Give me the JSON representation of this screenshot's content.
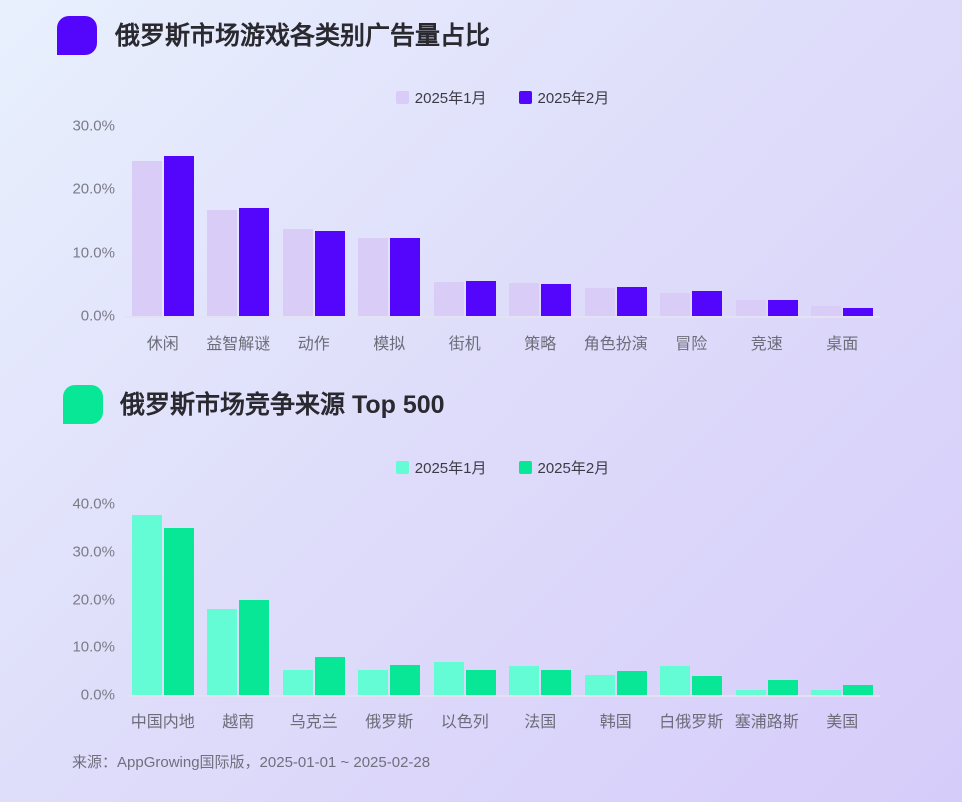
{
  "colors": {
    "background_start": "#e8f0fd",
    "background_mid": "#dedcfa",
    "background_end": "#d6ccfa"
  },
  "footer": {
    "text": "来源：AppGrowing国际版，2025-01-01 ~ 2025-02-28"
  },
  "chart_data": [
    {
      "type": "bar",
      "title": "俄罗斯市场游戏各类别广告量占比",
      "accent_color": "#5306fb",
      "legend_position": "top-center",
      "grid": false,
      "ylim": [
        0,
        30
      ],
      "yticks": [
        {
          "value": 0,
          "label": "0.0%"
        },
        {
          "value": 10,
          "label": "10.0%"
        },
        {
          "value": 20,
          "label": "20.0%"
        },
        {
          "value": 30,
          "label": "30.0%"
        }
      ],
      "categories": [
        "休闲",
        "益智解谜",
        "动作",
        "模拟",
        "街机",
        "策略",
        "角色扮演",
        "冒险",
        "竞速",
        "桌面"
      ],
      "series": [
        {
          "name": "2025年1月",
          "color": "#d9cdf8",
          "values": [
            24.4,
            16.7,
            13.8,
            12.3,
            5.4,
            5.2,
            4.4,
            3.6,
            2.6,
            1.6
          ]
        },
        {
          "name": "2025年2月",
          "color": "#5306fb",
          "values": [
            25.2,
            17.0,
            13.4,
            12.3,
            5.6,
            5.0,
            4.6,
            4.0,
            2.6,
            1.3
          ]
        }
      ]
    },
    {
      "type": "bar",
      "title": "俄罗斯市场竞争来源 Top 500",
      "accent_color": "#07e795",
      "legend_position": "top-center",
      "grid": false,
      "ylim": [
        0,
        40
      ],
      "yticks": [
        {
          "value": 0,
          "label": "0.0%"
        },
        {
          "value": 10,
          "label": "10.0%"
        },
        {
          "value": 20,
          "label": "20.0%"
        },
        {
          "value": 30,
          "label": "30.0%"
        },
        {
          "value": 40,
          "label": "40.0%"
        }
      ],
      "categories": [
        "中国内地",
        "越南",
        "乌克兰",
        "俄罗斯",
        "以色列",
        "法国",
        "韩国",
        "白俄罗斯",
        "塞浦路斯",
        "美国"
      ],
      "series": [
        {
          "name": "2025年1月",
          "color": "#63fcd5",
          "values": [
            37.8,
            18.0,
            5.2,
            5.2,
            7.0,
            6.0,
            4.1,
            6.0,
            1.0,
            1.1
          ]
        },
        {
          "name": "2025年2月",
          "color": "#07e795",
          "values": [
            35.0,
            20.0,
            8.0,
            6.2,
            5.2,
            5.2,
            5.1,
            4.0,
            3.2,
            2.1
          ]
        }
      ]
    }
  ]
}
